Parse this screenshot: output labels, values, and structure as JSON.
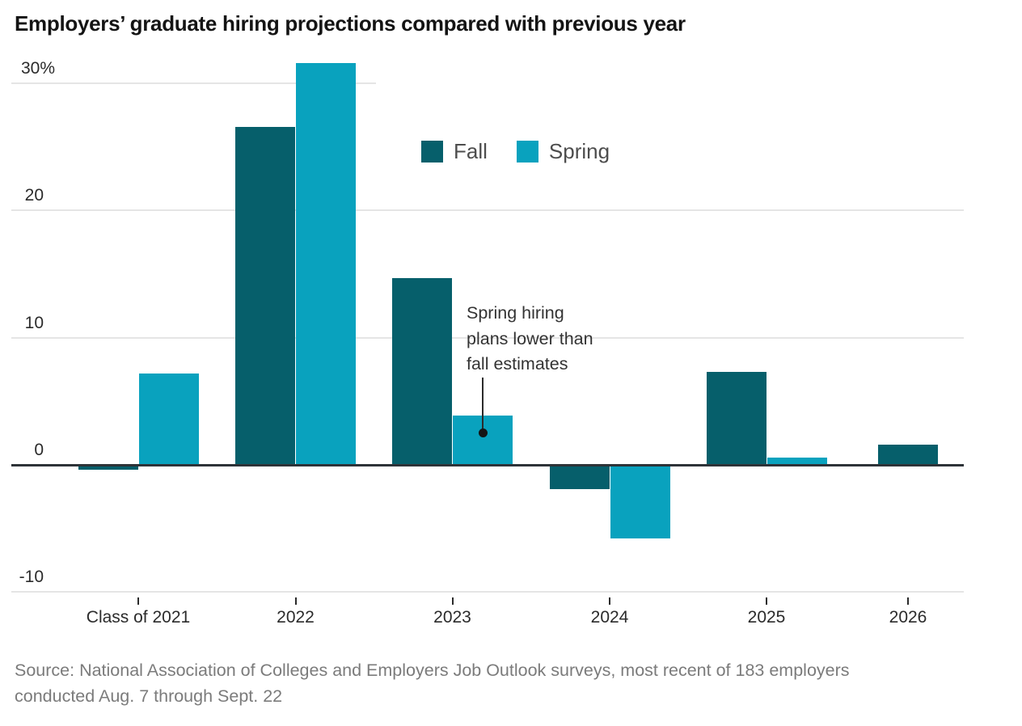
{
  "chart_data": {
    "type": "bar",
    "title": "Employers’ graduate hiring projections compared with previous year",
    "unit": "%",
    "categories": [
      "Class of 2021",
      "2022",
      "2023",
      "2024",
      "2025",
      "2026"
    ],
    "series": [
      {
        "name": "Fall",
        "color": "#065f6b",
        "values": [
          -0.4,
          26.6,
          14.7,
          -1.9,
          7.3,
          1.6
        ]
      },
      {
        "name": "Spring",
        "color": "#09a2be",
        "values": [
          7.2,
          31.6,
          3.9,
          -5.8,
          0.6,
          null
        ]
      }
    ],
    "yticks": [
      {
        "value": 30,
        "label": "30%"
      },
      {
        "value": 20,
        "label": "20"
      },
      {
        "value": 10,
        "label": "10"
      },
      {
        "value": 0,
        "label": "0"
      },
      {
        "value": -10,
        "label": "-10"
      }
    ],
    "ylim": [
      -12.5,
      32.5
    ],
    "grid": "horizontal",
    "legend": {
      "position": "top-center",
      "labels": [
        "Fall",
        "Spring"
      ]
    },
    "annotation": {
      "text": "Spring hiring\nplans lower than\nfall estimates",
      "points_to": {
        "category": "2023",
        "series": "Spring"
      }
    }
  },
  "source": {
    "line1": "Source: National Association of Colleges and Employers Job Outlook surveys, most recent of 183 employers",
    "line2": "conducted Aug. 7 through Sept. 22"
  }
}
